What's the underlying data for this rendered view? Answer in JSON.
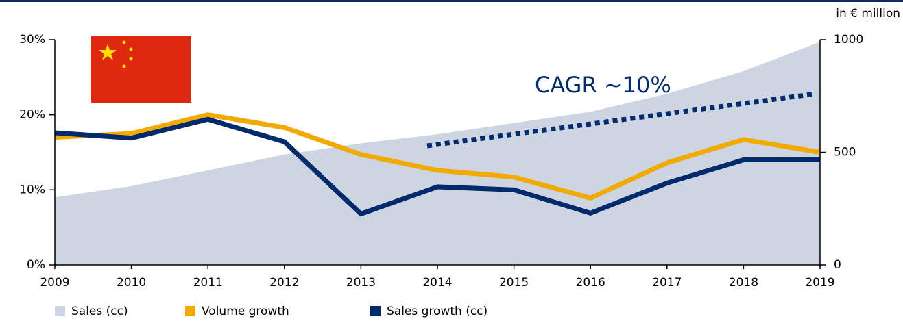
{
  "chart_data": {
    "type": "line",
    "annotation": "CAGR ~10%",
    "y2_label": "in € million",
    "categories": [
      "2009",
      "2010",
      "2011",
      "2012",
      "2013",
      "2014",
      "2015",
      "2016",
      "2017",
      "2018",
      "2019"
    ],
    "series": [
      {
        "name": "Sales (cc)",
        "type": "area",
        "axis": "y2",
        "color": "#cdd5e3",
        "values": [
          300,
          350,
          420,
          490,
          540,
          580,
          630,
          680,
          760,
          860,
          990
        ]
      },
      {
        "name": "Volume growth",
        "type": "line",
        "color": "#f0aa00",
        "values": [
          17.0,
          17.5,
          20.0,
          18.3,
          14.7,
          12.6,
          11.7,
          8.9,
          13.6,
          16.7,
          15.0
        ]
      },
      {
        "name": "Sales growth (cc)",
        "type": "line",
        "color": "#002a6c",
        "values": [
          17.6,
          16.9,
          19.4,
          16.4,
          6.8,
          10.4,
          10.0,
          6.9,
          10.9,
          14.0,
          14.0
        ]
      }
    ],
    "ylim": [
      0,
      30
    ],
    "yticks": [
      {
        "value": 0,
        "label": "0%"
      },
      {
        "value": 10,
        "label": "10%"
      },
      {
        "value": 20,
        "label": "20%"
      },
      {
        "value": 30,
        "label": "30%"
      }
    ],
    "y2lim": [
      0,
      1000
    ],
    "y2ticks": [
      0,
      500,
      1000
    ]
  }
}
